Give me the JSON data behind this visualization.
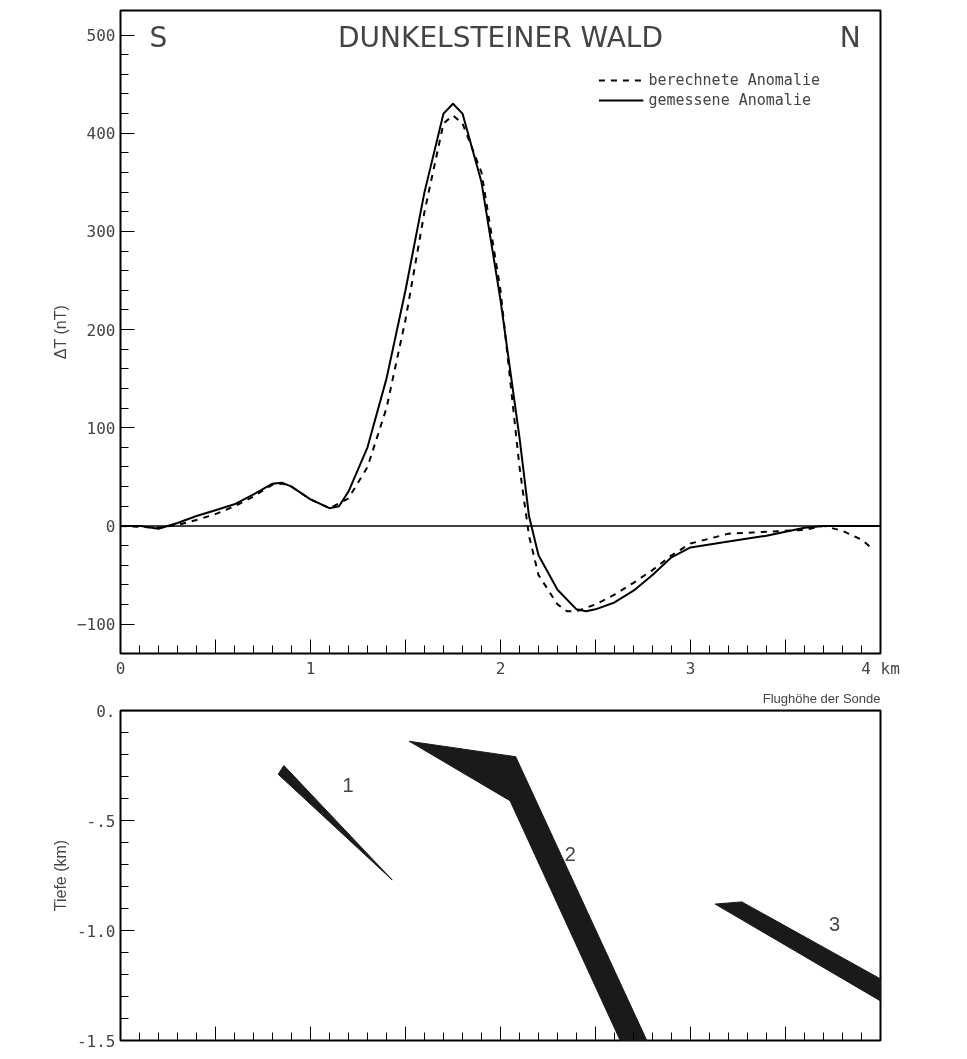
{
  "chart_data": [
    {
      "type": "line",
      "title": "DUNKELSTEINER WALD",
      "ylabel": "ΔT (nT)",
      "annotations": [
        "S",
        "N"
      ],
      "xlim": [
        0,
        4
      ],
      "ylim": [
        -130,
        525
      ],
      "xticks": [
        0,
        {
          "value": 0.5,
          "label": null
        },
        1,
        {
          "value": 1.5,
          "label": null
        },
        2,
        {
          "value": 2.5,
          "label": null
        },
        3,
        {
          "value": 3.5,
          "label": null
        },
        {
          "value": 4,
          "label": "4 km"
        }
      ],
      "yticks": [
        -100,
        0,
        100,
        200,
        300,
        400,
        500
      ],
      "grid": false,
      "legend": "top right",
      "ref_lines": [
        {
          "axis": "y",
          "value": 0,
          "label": null
        }
      ],
      "series": [
        {
          "name": "berechnete Anomalie",
          "color": "#000000",
          "line_style": "dashed",
          "x": [
            0,
            0.2,
            0.3,
            0.4,
            0.5,
            0.6,
            0.7,
            0.8,
            0.85,
            0.9,
            1.0,
            1.1,
            1.2,
            1.3,
            1.4,
            1.5,
            1.6,
            1.7,
            1.75,
            1.8,
            1.9,
            2.0,
            2.1,
            2.15,
            2.2,
            2.3,
            2.35,
            2.4,
            2.5,
            2.6,
            2.7,
            2.8,
            2.9,
            3.0,
            3.2,
            3.4,
            3.6,
            3.7,
            3.8,
            3.9,
            3.95
          ],
          "values": [
            0,
            -2,
            1,
            6,
            12,
            20,
            30,
            42,
            43,
            40,
            27,
            18,
            28,
            60,
            120,
            210,
            320,
            410,
            418,
            410,
            360,
            240,
            60,
            -10,
            -50,
            -80,
            -87,
            -87,
            -80,
            -70,
            -58,
            -45,
            -30,
            -18,
            -8,
            -6,
            -4,
            0,
            -5,
            -14,
            -22
          ]
        },
        {
          "name": "gemessene Anomalie",
          "color": "#000000",
          "line_style": "solid",
          "x": [
            0,
            0.1,
            0.2,
            0.3,
            0.4,
            0.5,
            0.6,
            0.7,
            0.8,
            0.85,
            0.9,
            1.0,
            1.1,
            1.15,
            1.2,
            1.3,
            1.4,
            1.5,
            1.6,
            1.7,
            1.75,
            1.8,
            1.9,
            2.0,
            2.1,
            2.15,
            2.2,
            2.3,
            2.4,
            2.45,
            2.5,
            2.6,
            2.7,
            2.8,
            2.9,
            3.0,
            3.2,
            3.4,
            3.6,
            3.7,
            4.0
          ],
          "values": [
            0,
            0,
            -3,
            3,
            10,
            16,
            22,
            32,
            43,
            44,
            40,
            27,
            18,
            20,
            35,
            80,
            150,
            240,
            340,
            420,
            430,
            420,
            350,
            230,
            90,
            10,
            -30,
            -65,
            -85,
            -87,
            -85,
            -78,
            -66,
            -50,
            -32,
            -22,
            -16,
            -10,
            -2,
            0,
            0
          ]
        }
      ]
    },
    {
      "type": "area",
      "ylabel": "Tiefe (km)",
      "annotations": [
        "1",
        "2",
        "3"
      ],
      "xlim": [
        0,
        4
      ],
      "ylim": [
        -1.5,
        0
      ],
      "xticks": [
        {
          "value": 0,
          "label": null
        },
        {
          "value": 0.5,
          "label": null
        },
        {
          "value": 1,
          "label": null
        },
        {
          "value": 1.5,
          "label": null
        },
        {
          "value": 2,
          "label": null
        },
        {
          "value": 2.5,
          "label": null
        },
        {
          "value": 3,
          "label": null
        },
        {
          "value": 3.5,
          "label": null
        },
        {
          "value": 4,
          "label": null
        }
      ],
      "yticks": [
        {
          "value": 0,
          "label": "0."
        },
        {
          "value": -0.5,
          "label": "-.5"
        },
        {
          "value": -1.0,
          "label": "-1.0"
        },
        {
          "value": -1.5,
          "label": "-1.5"
        }
      ],
      "tick_labels": "y",
      "grid": false,
      "ref_lines": [
        {
          "axis": "y",
          "value": 0,
          "label": "Flughöhe der Sonde"
        }
      ],
      "series": [
        {
          "color": "#1a1a1a",
          "x": [
            0.83,
            0.86,
            1.43
          ],
          "values": [
            -0.29,
            -0.25,
            -0.77
          ]
        },
        {
          "color": "#1a1a1a",
          "x": [
            1.52,
            2.08,
            2.77,
            2.63,
            2.05
          ],
          "values": [
            -0.14,
            -0.21,
            -1.5,
            -1.5,
            -0.41
          ]
        },
        {
          "color": "#1a1a1a",
          "x": [
            3.13,
            3.27,
            4.0,
            4.0
          ],
          "values": [
            -0.88,
            -0.87,
            -1.22,
            -1.32
          ]
        }
      ]
    }
  ]
}
